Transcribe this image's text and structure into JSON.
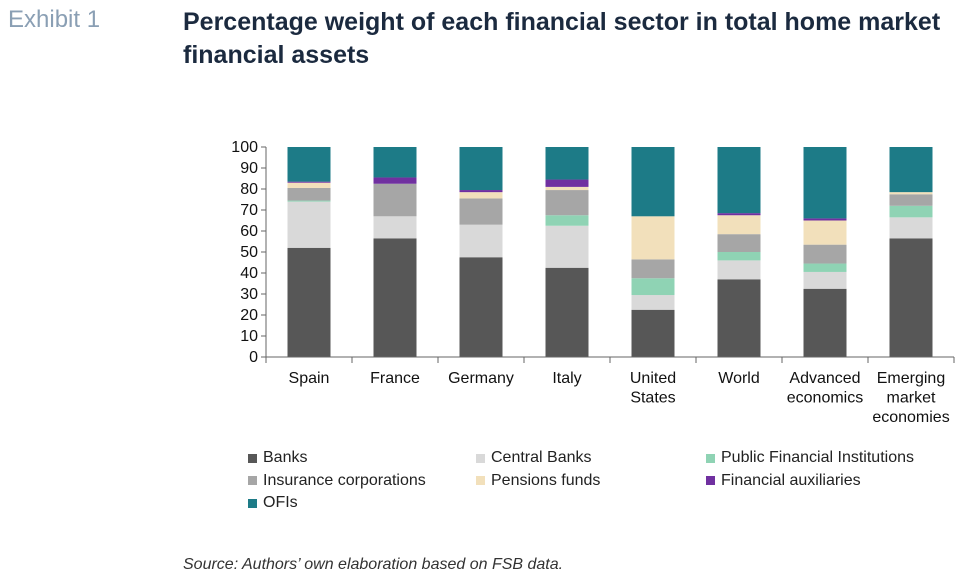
{
  "exhibit_label": "Exhibit 1",
  "title": "Percentage weight of each financial sector in total home market financial assets",
  "source": "Source: Authors’ own elaboration based on FSB data.",
  "chart_data": {
    "type": "bar",
    "stacked": true,
    "categories": [
      [
        "Spain"
      ],
      [
        "France"
      ],
      [
        "Germany"
      ],
      [
        "Italy"
      ],
      [
        "United",
        "States"
      ],
      [
        "World"
      ],
      [
        "Advanced",
        "economics"
      ],
      [
        "Emerging",
        "market",
        "economies"
      ]
    ],
    "ylim": [
      0,
      100
    ],
    "yticks": [
      0,
      10,
      20,
      30,
      40,
      50,
      60,
      70,
      80,
      90,
      100
    ],
    "grid": false,
    "legend_position": "bottom",
    "series": [
      {
        "name": "Banks",
        "color": "#575757",
        "values": [
          52,
          56.5,
          47.5,
          42.5,
          22.5,
          37,
          32.5,
          56.5
        ]
      },
      {
        "name": "Central Banks",
        "color": "#d9d9d9",
        "values": [
          22,
          10.5,
          15.5,
          20,
          7,
          9,
          8,
          10
        ]
      },
      {
        "name": "Public Financial Institutions",
        "color": "#8fd3b4",
        "values": [
          0.5,
          0,
          0,
          5,
          8,
          4,
          4,
          5.5
        ]
      },
      {
        "name": "Insurance corporations",
        "color": "#a6a6a6",
        "values": [
          6,
          15.5,
          12.5,
          12,
          9,
          8.5,
          9,
          5.5
        ]
      },
      {
        "name": "Pensions funds",
        "color": "#f2e0bb",
        "values": [
          2.5,
          0,
          3,
          1.5,
          20.5,
          9,
          11.5,
          1
        ]
      },
      {
        "name": "Financial auxiliaries",
        "color": "#7030a0",
        "values": [
          0.5,
          3,
          1,
          3.5,
          0,
          1,
          1,
          0
        ]
      },
      {
        "name": "OFIs",
        "color": "#1d7b87",
        "values": [
          16.5,
          14.5,
          20.5,
          15.5,
          33,
          31.5,
          34,
          21.5
        ]
      }
    ]
  }
}
